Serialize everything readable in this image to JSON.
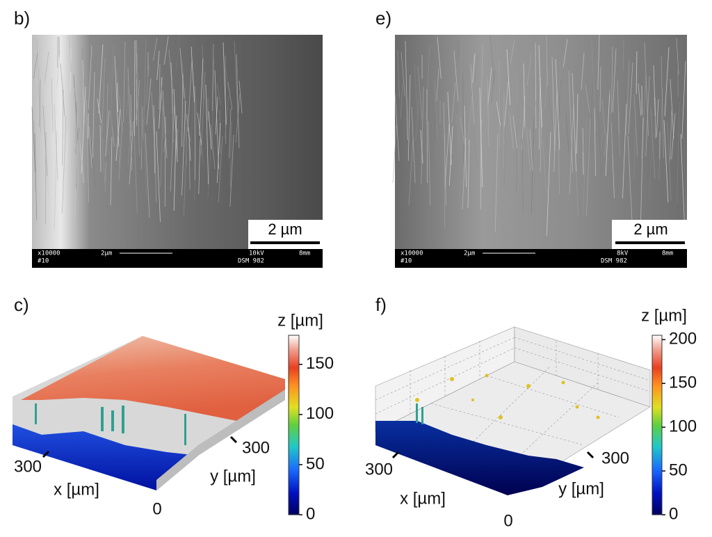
{
  "panels": [
    {
      "label": "b)",
      "scale_bar": "2 µm",
      "info": [
        "x10000",
        "#10",
        "2µm",
        "10kV",
        "DSM 982",
        "8mm"
      ]
    },
    {
      "label": "e)",
      "scale_bar": "2 µm",
      "info": [
        "x10000",
        "#10",
        "2µm",
        "8kV",
        "DSM 982",
        "8mm"
      ]
    },
    {
      "label": "c)",
      "colorbar": {
        "title": "z [µm]",
        "lim": [
          0,
          179
        ],
        "ticks": [
          0,
          50,
          100,
          150
        ]
      },
      "x_label": "x [µm]",
      "y_label": "y [µm]",
      "xtick": 300,
      "ytick": 300,
      "corner_tick": 0
    },
    {
      "label": "f)",
      "colorbar": {
        "title": "z [µm]",
        "lim": [
          0,
          205
        ],
        "ticks": [
          0,
          50,
          100,
          150,
          200
        ]
      },
      "x_label": "x [µm]",
      "y_label": "y [µm]",
      "xtick": 300,
      "ytick": 300,
      "corner_tick": 0
    }
  ]
}
